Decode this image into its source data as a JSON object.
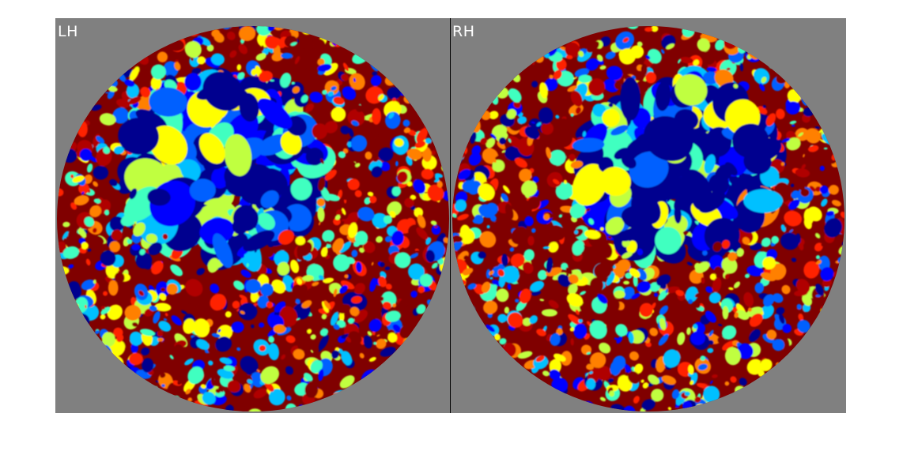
{
  "panels": [
    {
      "id": "lh",
      "label": "LH"
    },
    {
      "id": "rh",
      "label": "RH"
    }
  ],
  "colormap": [
    "#00008f",
    "#0000ff",
    "#0060ff",
    "#00c0ff",
    "#40ffc0",
    "#c0ff40",
    "#ffff00",
    "#ff8000",
    "#ff2000",
    "#b00000",
    "#800000"
  ],
  "background_color": "#808080"
}
